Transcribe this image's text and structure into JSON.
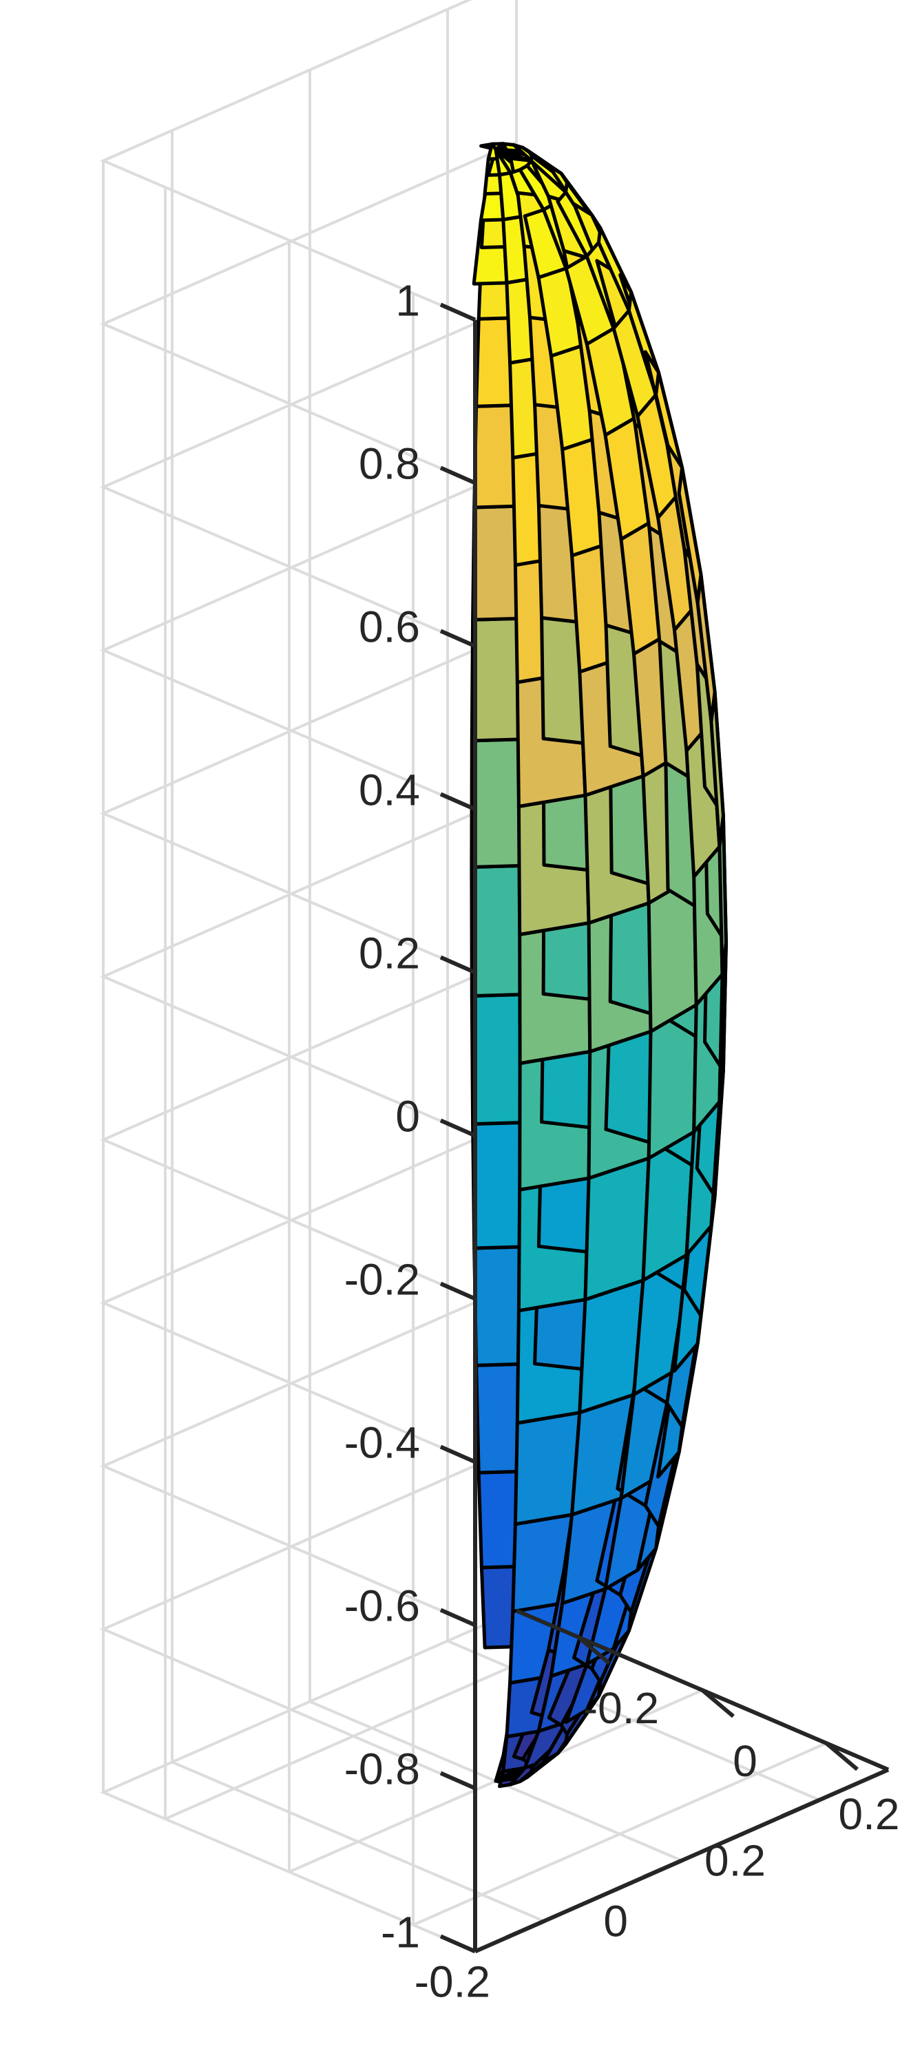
{
  "chart_data": {
    "type": "surface3d",
    "description": "3D ellipsoid surface (parula colormap by z) with black mesh edges",
    "shape": {
      "kind": "ellipsoid",
      "center": [
        0,
        0,
        0
      ],
      "radii": {
        "x": 0.25,
        "y": 0.25,
        "z": 1.0
      },
      "grid_lat_bands": 20,
      "grid_lon_segments": 20
    },
    "colormap": "parula",
    "color_by": "z",
    "edge_color": "#000000",
    "grid": true,
    "axes": {
      "z": {
        "range": [
          -1,
          1
        ],
        "ticks": [
          -1,
          -0.8,
          -0.6,
          -0.4,
          -0.2,
          0,
          0.2,
          0.4,
          0.6,
          0.8,
          1
        ],
        "tick_labels": [
          "-1",
          "-0.8",
          "-0.6",
          "-0.4",
          "-0.2",
          "0",
          "0.2",
          "0.4",
          "0.6",
          "0.8",
          "1"
        ]
      },
      "x": {
        "range": [
          -0.3,
          0.3
        ],
        "ticks": [
          -0.2,
          0,
          0.2
        ],
        "tick_labels": [
          "-0.2",
          "0",
          "0.2"
        ]
      },
      "y": {
        "range": [
          -0.3,
          0.3
        ],
        "ticks": [
          -0.2,
          0,
          0.2
        ],
        "tick_labels": [
          "-0.2",
          "0",
          "0.2"
        ]
      }
    },
    "title": "",
    "xlabel": "",
    "ylabel": "",
    "zlabel": ""
  }
}
